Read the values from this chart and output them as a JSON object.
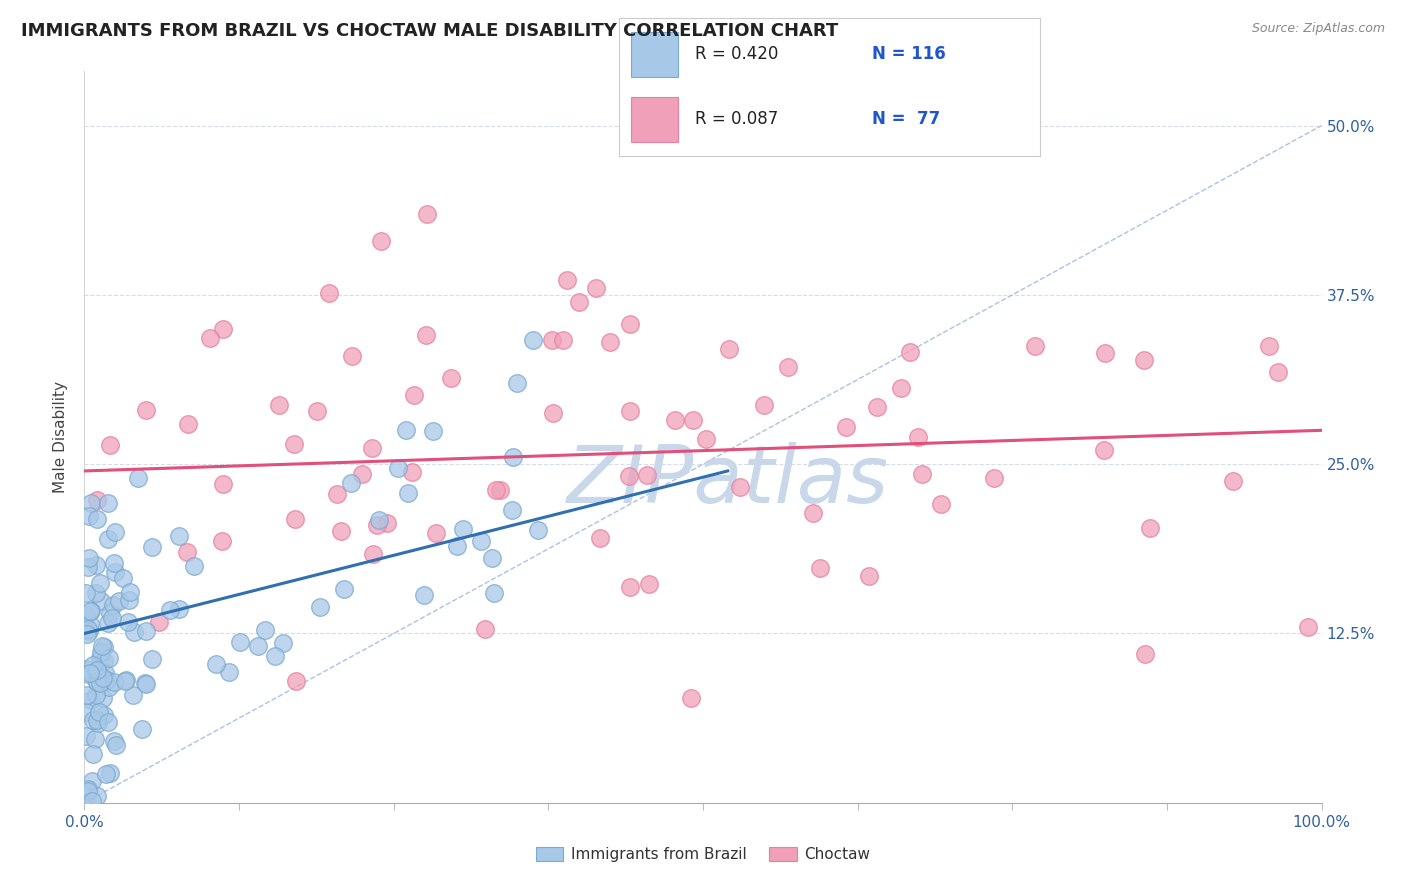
{
  "title": "IMMIGRANTS FROM BRAZIL VS CHOCTAW MALE DISABILITY CORRELATION CHART",
  "source_text": "Source: ZipAtlas.com",
  "ylabel": "Male Disability",
  "xlim": [
    0.0,
    1.0
  ],
  "ylim": [
    0.0,
    0.54
  ],
  "ytick_vals": [
    0.0,
    0.125,
    0.25,
    0.375,
    0.5
  ],
  "ytick_labels": [
    "",
    "12.5%",
    "25.0%",
    "37.5%",
    "50.0%"
  ],
  "xtick_vals": [
    0.0,
    0.125,
    0.25,
    0.375,
    0.5,
    0.625,
    0.75,
    0.875,
    1.0
  ],
  "xtick_labels": [
    "0.0%",
    "",
    "",
    "",
    "",
    "",
    "",
    "",
    "100.0%"
  ],
  "legend_r1": "R = 0.420",
  "legend_n1": "N = 116",
  "legend_r2": "R = 0.087",
  "legend_n2": "N = 77",
  "legend_label1": "Immigrants from Brazil",
  "legend_label2": "Choctaw",
  "blue_color": "#a8c8e8",
  "pink_color": "#f0a0b8",
  "blue_edge_color": "#7aaad0",
  "pink_edge_color": "#e880a0",
  "blue_line_color": "#3070b0",
  "pink_line_color": "#e0507a",
  "diag_line_color": "#a0bce0",
  "watermark_color": "#c8d8ea",
  "background_color": "#ffffff",
  "grid_color": "#d8dce8",
  "title_fontsize": 13,
  "axis_label_fontsize": 11,
  "tick_fontsize": 11,
  "blue_trend_start_y": 0.125,
  "blue_trend_end_x": 0.5,
  "blue_trend_end_y": 0.245,
  "pink_trend_start_y": 0.245,
  "pink_trend_end_y": 0.275
}
